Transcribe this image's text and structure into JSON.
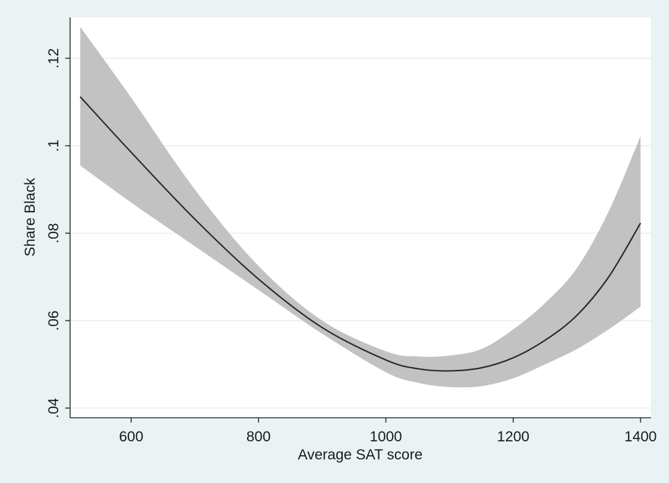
{
  "chart_data": {
    "type": "line",
    "title": "",
    "xlabel": "Average SAT score",
    "ylabel": "Share Black",
    "xlim": [
      520,
      1400
    ],
    "ylim": [
      0.04,
      0.12
    ],
    "x_ticks": [
      {
        "value": 600,
        "label": "600"
      },
      {
        "value": 800,
        "label": "800"
      },
      {
        "value": 1000,
        "label": "1000"
      },
      {
        "value": 1200,
        "label": "1200"
      },
      {
        "value": 1400,
        "label": "1400"
      }
    ],
    "y_ticks": [
      {
        "value": 0.04,
        "label": ".04"
      },
      {
        "value": 0.06,
        "label": ".06"
      },
      {
        "value": 0.08,
        "label": ".08"
      },
      {
        "value": 0.1,
        "label": ".1"
      },
      {
        "value": 0.12,
        "label": ".12"
      }
    ],
    "grid": "horizontal",
    "legend": "none",
    "colors": {
      "line": "#1f2a2a",
      "band": "#c2c2c2",
      "plot_background": "#ffffff",
      "outer_background": "#eaf2f3",
      "grid": "#e9eef0"
    },
    "series": [
      {
        "x": [
          520,
          600,
          700,
          800,
          900,
          1000,
          1050,
          1100,
          1150,
          1200,
          1250,
          1300,
          1350,
          1400
        ],
        "y": [
          0.1112,
          0.0985,
          0.0832,
          0.0695,
          0.0584,
          0.051,
          0.049,
          0.0485,
          0.0492,
          0.0515,
          0.0555,
          0.0612,
          0.07,
          0.0823
        ],
        "ci_lower": [
          0.0955,
          0.087,
          0.077,
          0.067,
          0.057,
          0.0482,
          0.0458,
          0.0448,
          0.045,
          0.0468,
          0.05,
          0.0535,
          0.058,
          0.0632
        ],
        "ci_upper": [
          0.1272,
          0.111,
          0.09,
          0.0725,
          0.06,
          0.053,
          0.0518,
          0.052,
          0.0535,
          0.058,
          0.064,
          0.072,
          0.085,
          0.1022
        ]
      }
    ]
  }
}
